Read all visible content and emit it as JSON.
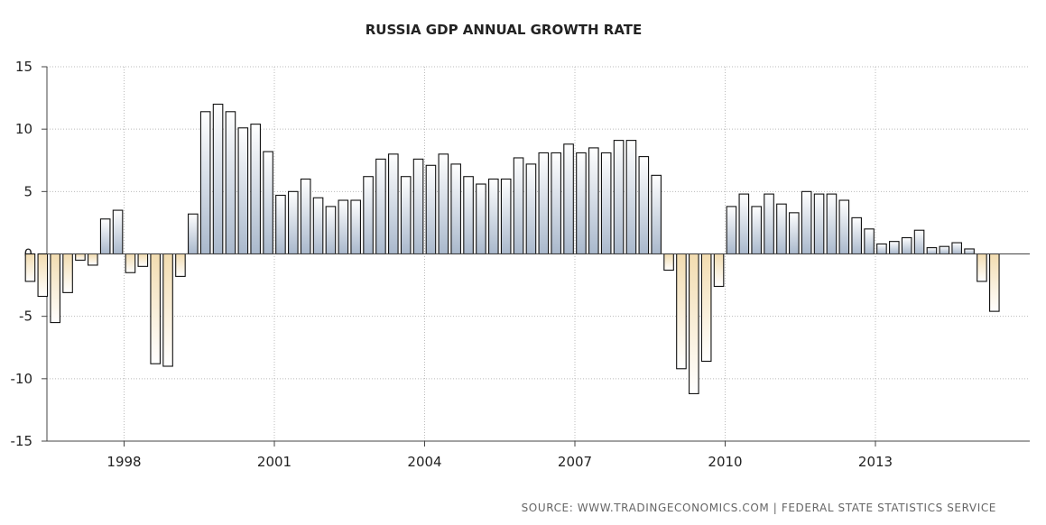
{
  "chart_data": {
    "type": "bar",
    "title": "RUSSIA GDP ANNUAL GROWTH RATE",
    "source": "SOURCE:  WWW.TRADINGECONOMICS.COM  |  FEDERAL  STATE  STATISTICS  SERVICE",
    "xlabel": "",
    "ylabel": "",
    "ylim": [
      -15,
      15
    ],
    "yticks": [
      "15",
      "10",
      "5",
      "0",
      "-5",
      "-10",
      "-15"
    ],
    "xticks": [
      "1998",
      "2001",
      "2004",
      "2007",
      "2010",
      "2013"
    ],
    "x_range_years": [
      1996.0,
      2015.9
    ],
    "grid": true,
    "colors": {
      "positive_top": "#ffffff",
      "positive_bottom": "#a9b8cc",
      "negative_top": "#f2dcb0",
      "negative_bottom": "#ffffff",
      "bar_stroke": "#111111",
      "grid": "#bbbbbb",
      "axis": "#444444"
    },
    "series": [
      {
        "name": "GDP Annual Growth Rate",
        "start_year": 1996.0,
        "period": "quarterly",
        "values": [
          -2.2,
          -3.4,
          -5.5,
          -3.1,
          -0.5,
          -0.9,
          2.8,
          3.5,
          -1.5,
          -1.0,
          -8.8,
          -9.0,
          -1.8,
          3.2,
          11.4,
          12.0,
          11.4,
          10.1,
          10.4,
          8.2,
          4.7,
          5.0,
          6.0,
          4.5,
          3.8,
          4.3,
          4.3,
          6.2,
          7.6,
          8.0,
          6.2,
          7.6,
          7.1,
          8.0,
          7.2,
          6.2,
          5.6,
          6.0,
          6.0,
          7.7,
          7.2,
          8.1,
          8.1,
          8.8,
          8.1,
          8.5,
          8.1,
          9.1,
          9.1,
          7.8,
          6.3,
          -1.3,
          -9.2,
          -11.2,
          -8.6,
          -2.6,
          3.8,
          4.8,
          3.8,
          4.8,
          4.0,
          3.3,
          5.0,
          4.8,
          4.8,
          4.3,
          2.9,
          2.0,
          0.8,
          1.0,
          1.3,
          1.9,
          0.5,
          0.6,
          0.9,
          0.4,
          -2.2,
          -4.6
        ]
      }
    ]
  }
}
